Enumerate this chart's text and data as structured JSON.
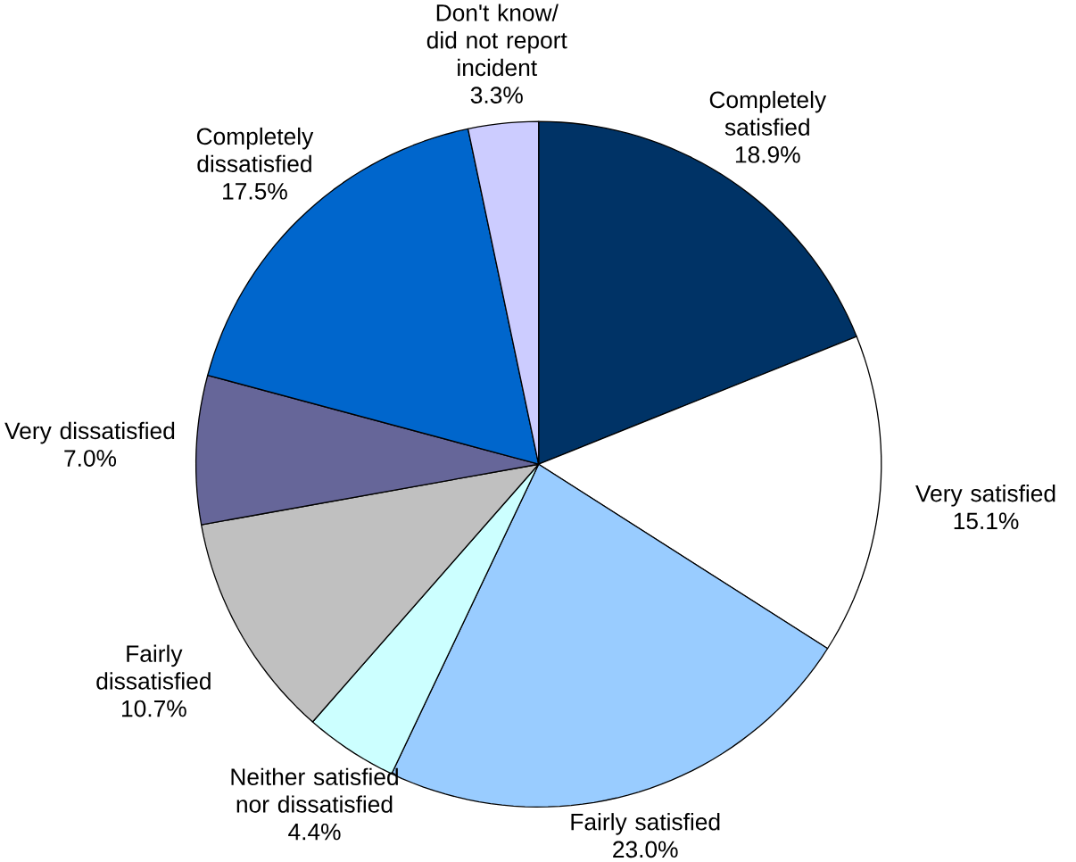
{
  "chart_data": {
    "type": "pie",
    "categories": [
      "Completely satisfied",
      "Very satisfied",
      "Fairly satisfied",
      "Neither satisfied nor dissatisfied",
      "Fairly dissatisfied",
      "Very dissatisfied",
      "Completely dissatisfied",
      "Don't know/ did not report incident"
    ],
    "values": [
      18.9,
      15.1,
      23.0,
      4.4,
      10.7,
      7.0,
      17.5,
      3.3
    ],
    "value_labels": [
      "18.9%",
      "15.1%",
      "23.0%",
      "4.4%",
      "10.7%",
      "7.0%",
      "17.5%",
      "3.3%"
    ],
    "colors": [
      "#003366",
      "#ffffff",
      "#99ccff",
      "#ccffff",
      "#c0c0c0",
      "#666699",
      "#0066cc",
      "#ccccff"
    ]
  }
}
